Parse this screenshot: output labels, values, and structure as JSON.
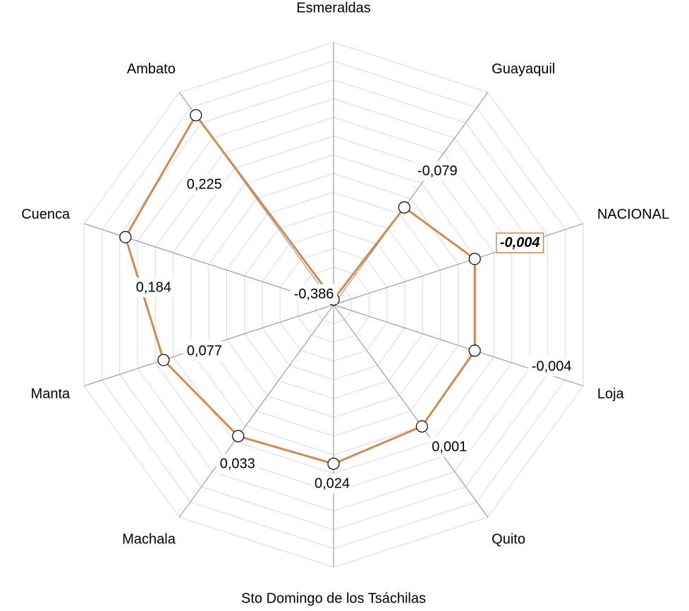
{
  "chart_data": {
    "type": "radar",
    "categories": [
      "Esmeraldas",
      "Guayaquil",
      "NACIONAL",
      "Loja",
      "Quito",
      "Sto Domingo de los Tsáchilas",
      "Machala",
      "Manta",
      "Cuenca",
      "Ambato"
    ],
    "values": [
      -0.386,
      -0.079,
      -0.004,
      -0.004,
      0.001,
      0.024,
      0.033,
      0.077,
      0.184,
      0.225
    ],
    "value_labels": [
      "-0,386",
      "-0,079",
      "-0,004",
      "-0,004",
      "0,001",
      "0,024",
      "0,033",
      "0,077",
      "0,184",
      "0,225"
    ],
    "color": "#d18b52",
    "highlight_index": 2,
    "ylim": [
      -0.4,
      0.3
    ],
    "yticks": [
      -0.4,
      -0.35,
      -0.3,
      -0.25,
      -0.2,
      -0.15,
      -0.1,
      -0.05,
      0,
      0.05,
      0.1,
      0.15,
      0.2,
      0.25,
      0.3
    ],
    "grid": true
  }
}
